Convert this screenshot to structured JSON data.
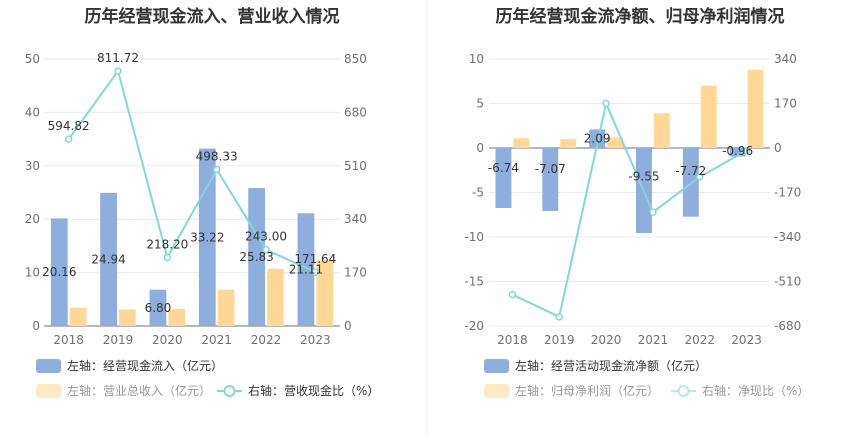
{
  "chart_data": [
    {
      "type": "bar",
      "title": "历年经营现金流入、营业收入情况",
      "categories": [
        "2018",
        "2019",
        "2020",
        "2021",
        "2022",
        "2023"
      ],
      "left_axis": {
        "min": 0,
        "max": 50,
        "ticks": [
          "0",
          "10",
          "20",
          "30",
          "40",
          "50"
        ]
      },
      "right_axis": {
        "min": 0,
        "max": 850,
        "ticks": [
          "0",
          "170",
          "340",
          "510",
          "680",
          "850"
        ]
      },
      "series": [
        {
          "name": "左轴：经营现金流入（亿元）",
          "kind": "bar",
          "axis": "left",
          "color": "#8eaedd",
          "values": [
            20.16,
            24.94,
            6.8,
            33.22,
            25.83,
            21.11
          ],
          "labels": [
            "20.16",
            "24.94",
            "6.80",
            "33.22",
            "25.83",
            "21.11"
          ]
        },
        {
          "name": "左轴：营业总收入（亿元）",
          "kind": "bar",
          "axis": "left",
          "color": "#ffd898",
          "values": [
            3.4,
            3.1,
            3.2,
            6.8,
            10.7,
            12.3
          ]
        },
        {
          "name": "右轴：营收现金比（%）",
          "kind": "line",
          "axis": "right",
          "color": "#85d6dc",
          "values": [
            594.82,
            811.72,
            218.2,
            498.33,
            243.0,
            171.64
          ],
          "labels": [
            "594.82",
            "811.72",
            "218.20",
            "498.33",
            "243.00",
            "171.64"
          ]
        }
      ],
      "grid": true,
      "legend_position": "bottom"
    },
    {
      "type": "bar",
      "title": "历年经营现金流净额、归母净利润情况",
      "categories": [
        "2018",
        "2019",
        "2020",
        "2021",
        "2022",
        "2023"
      ],
      "left_axis": {
        "min": -20,
        "max": 10,
        "ticks": [
          "-20",
          "-15",
          "-10",
          "-5",
          "0",
          "5",
          "10"
        ]
      },
      "right_axis": {
        "min": -680,
        "max": 340,
        "ticks": [
          "-680",
          "-510",
          "-340",
          "-170",
          "0",
          "170",
          "340"
        ]
      },
      "series": [
        {
          "name": "左轴：经营活动现金流净额（亿元）",
          "kind": "bar",
          "axis": "left",
          "color": "#8eaedd",
          "values": [
            -6.74,
            -7.07,
            2.09,
            -9.55,
            -7.72,
            -0.96
          ],
          "labels": [
            "-6.74",
            "-7.07",
            "2.09",
            "-9.55",
            "-7.72",
            "-0.96"
          ]
        },
        {
          "name": "左轴：归母净利润（亿元）",
          "kind": "bar",
          "axis": "left",
          "color": "#ffd898",
          "values": [
            1.1,
            1.0,
            1.2,
            3.9,
            7.0,
            8.8
          ]
        },
        {
          "name": "右轴：净现比（%）",
          "kind": "line",
          "axis": "right",
          "color": "#85d6dc",
          "values": [
            -560,
            -645,
            170,
            -245,
            -110,
            -10
          ]
        }
      ],
      "grid": true,
      "legend_position": "bottom"
    }
  ]
}
